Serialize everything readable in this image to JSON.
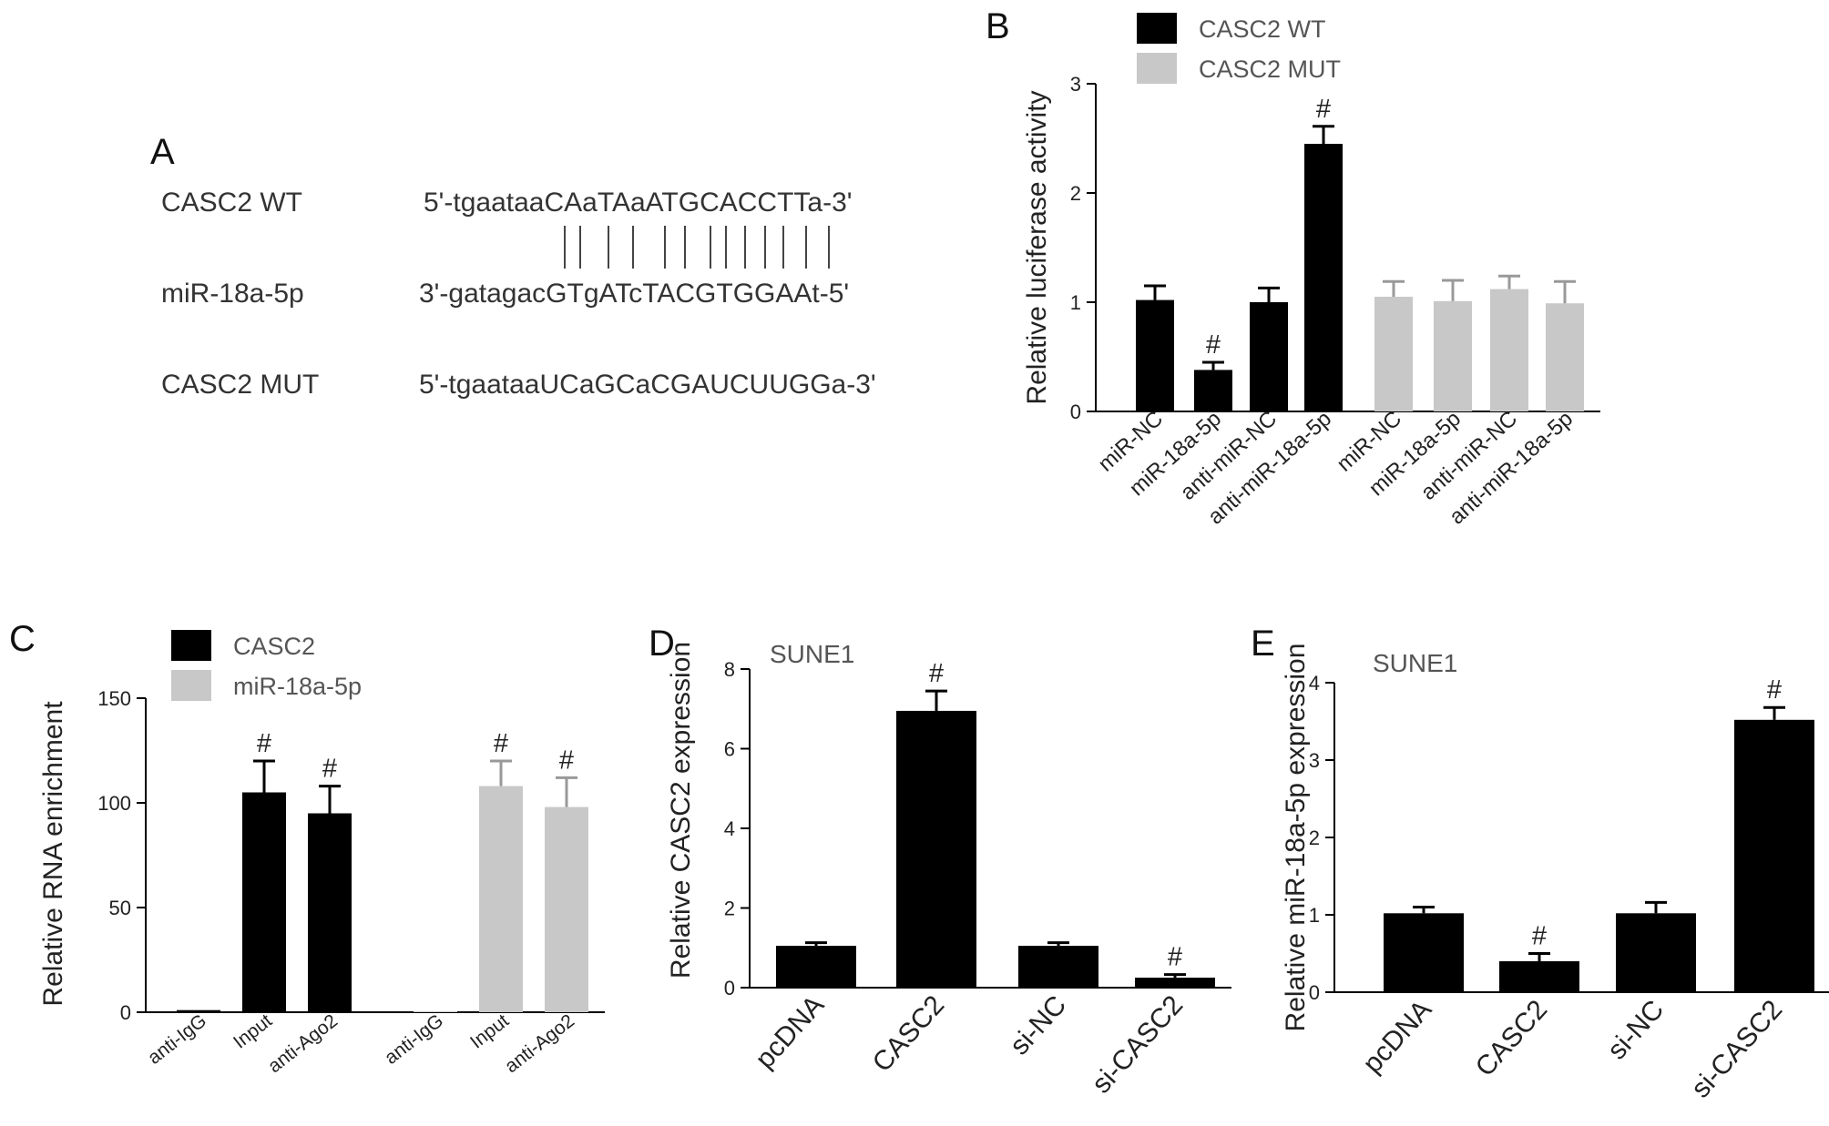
{
  "panel_a": {
    "letter": "A",
    "rows": [
      {
        "label": "CASC2 WT",
        "sequence": "5'-tgaataaCAaTAaATGCACCTTa-3'"
      },
      {
        "label": "miR-18a-5p",
        "sequence": "3'-gatagacGTgATcTACGTGGAAt-5'"
      },
      {
        "label": "CASC2 MUT",
        "sequence": "5'-tgaataaUCaGCaCGAUCUUGGa-3'"
      }
    ],
    "pairing_lines": 13
  },
  "colors": {
    "black_series": "#000000",
    "gray_series": "#c8c8c8",
    "axis": "#000000"
  },
  "chart_data": [
    {
      "id": "B",
      "letter": "B",
      "type": "bar",
      "title": "",
      "ylabel": "Relative luciferase activity",
      "ylim": [
        0,
        3
      ],
      "yticks": [
        0,
        1,
        2,
        3
      ],
      "legend": [
        {
          "name": "CASC2 WT",
          "color": "#000000"
        },
        {
          "name": "CASC2 MUT",
          "color": "#c8c8c8"
        }
      ],
      "categories": [
        "miR-NC",
        "miR-18a-5p",
        "anti-miR-NC",
        "anti-miR-18a-5p",
        "miR-NC",
        "miR-18a-5p",
        "anti-miR-NC",
        "anti-miR-18a-5p"
      ],
      "values": [
        1.02,
        0.38,
        1.0,
        2.45,
        1.05,
        1.01,
        1.12,
        0.99
      ],
      "errors": [
        0.13,
        0.07,
        0.13,
        0.16,
        0.14,
        0.19,
        0.12,
        0.2
      ],
      "colors": [
        "#000000",
        "#000000",
        "#000000",
        "#000000",
        "#c8c8c8",
        "#c8c8c8",
        "#c8c8c8",
        "#c8c8c8"
      ],
      "significance": [
        "",
        "#",
        "",
        "#",
        "",
        "",
        "",
        ""
      ]
    },
    {
      "id": "C",
      "letter": "C",
      "type": "bar",
      "title": "",
      "ylabel": "Relative RNA enrichment",
      "ylim": [
        0,
        150
      ],
      "yticks": [
        0,
        50,
        100,
        150
      ],
      "legend": [
        {
          "name": "CASC2",
          "color": "#000000"
        },
        {
          "name": "miR-18a-5p",
          "color": "#c8c8c8"
        }
      ],
      "categories": [
        "anti-IgG",
        "Input",
        "anti-Ago2",
        "anti-IgG",
        "Input",
        "anti-Ago2"
      ],
      "values": [
        1,
        105,
        95,
        0.5,
        108,
        98
      ],
      "errors": [
        0,
        15,
        13,
        0,
        12,
        14
      ],
      "colors": [
        "#000000",
        "#000000",
        "#000000",
        "#c8c8c8",
        "#c8c8c8",
        "#c8c8c8"
      ],
      "significance": [
        "",
        "#",
        "#",
        "",
        "#",
        "#"
      ]
    },
    {
      "id": "D",
      "letter": "D",
      "type": "bar",
      "title": "SUNE1",
      "ylabel": "Relative CASC2 expression",
      "ylim": [
        0,
        8
      ],
      "yticks": [
        0,
        2,
        4,
        6,
        8
      ],
      "categories": [
        "pcDNA",
        "CASC2",
        "si-NC",
        "si-CASC2"
      ],
      "values": [
        1.05,
        6.95,
        1.05,
        0.25
      ],
      "errors": [
        0.08,
        0.5,
        0.08,
        0.08
      ],
      "colors": [
        "#000000",
        "#000000",
        "#000000",
        "#000000"
      ],
      "significance": [
        "",
        "#",
        "",
        "#"
      ]
    },
    {
      "id": "E",
      "letter": "E",
      "type": "bar",
      "title": "SUNE1",
      "ylabel": "Relative miR-18a-5p expression",
      "ylim": [
        0,
        4
      ],
      "yticks": [
        0,
        1,
        2,
        3,
        4
      ],
      "categories": [
        "pcDNA",
        "CASC2",
        "si-NC",
        "si-CASC2"
      ],
      "values": [
        1.02,
        0.4,
        1.02,
        3.52
      ],
      "errors": [
        0.08,
        0.1,
        0.14,
        0.16
      ],
      "colors": [
        "#000000",
        "#000000",
        "#000000",
        "#000000"
      ],
      "significance": [
        "",
        "#",
        "",
        "#"
      ]
    }
  ]
}
